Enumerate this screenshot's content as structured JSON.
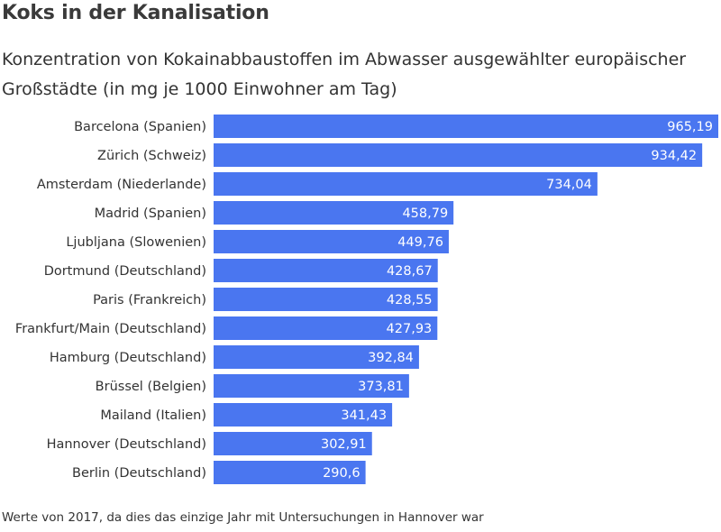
{
  "chart_data": {
    "type": "bar",
    "orientation": "horizontal",
    "title": "Koks in der Kanalisation",
    "subtitle": "Konzentration von Kokainabbaustoffen im Abwasser ausgewählter europäischer Großstädte (in mg je 1000 Einwohner am Tag)",
    "note": "Werte von 2017, da dies das einzige Jahr mit Untersuchungen in Hannover war",
    "categories": [
      "Barcelona (Spanien)",
      "Zürich (Schweiz)",
      "Amsterdam (Niederlande)",
      "Madrid (Spanien)",
      "Ljubljana (Slowenien)",
      "Dortmund (Deutschland)",
      "Paris (Frankreich)",
      "Frankfurt/Main (Deutschland)",
      "Hamburg (Deutschland)",
      "Brüssel (Belgien)",
      "Mailand (Italien)",
      "Hannover (Deutschland)",
      "Berlin (Deutschland)"
    ],
    "values": [
      965.19,
      934.42,
      734.04,
      458.79,
      449.76,
      428.67,
      428.55,
      427.93,
      392.84,
      373.81,
      341.43,
      302.91,
      290.6
    ],
    "value_labels": [
      "965,19",
      "934,42",
      "734,04",
      "458,79",
      "449,76",
      "428,67",
      "428,55",
      "427,93",
      "392,84",
      "373,81",
      "341,43",
      "302,91",
      "290,6"
    ],
    "xlim": [
      0,
      965.19
    ],
    "grid": false,
    "legend": "none",
    "bar_color": "#4a76f0"
  }
}
